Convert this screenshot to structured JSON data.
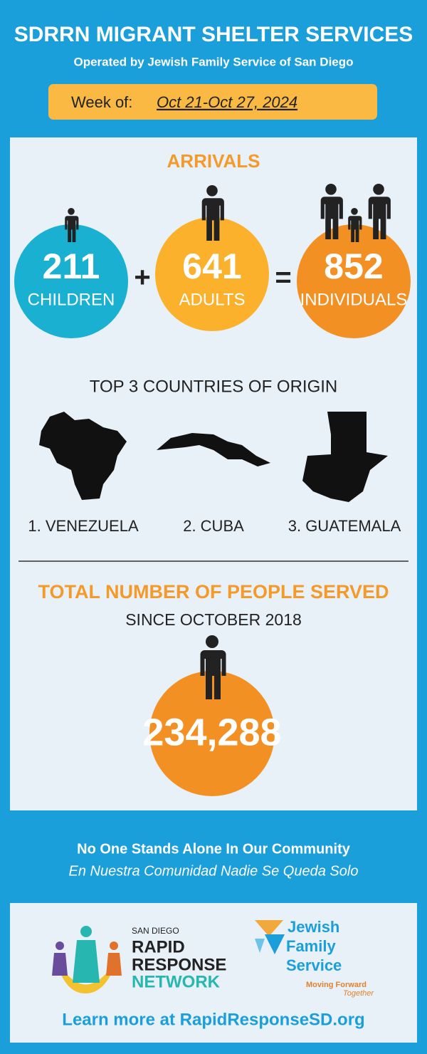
{
  "header": {
    "title": "SDRRN MIGRANT SHELTER SERVICES",
    "subtitle": "Operated by Jewish Family Service of San Diego",
    "week_label": "Week of:",
    "week_dates": "Oct 21-Oct 27, 2024"
  },
  "arrivals": {
    "heading": "ARRIVALS",
    "children": {
      "number": "211",
      "label": "CHILDREN"
    },
    "plus": "+",
    "adults": {
      "number": "641",
      "label": "ADULTS"
    },
    "equals": "=",
    "total": {
      "number": "852",
      "label": "INDIVIDUALS"
    }
  },
  "countries": {
    "heading": "TOP 3 COUNTRIES OF ORIGIN",
    "items": [
      "1. VENEZUELA",
      "2. CUBA",
      "3. GUATEMALA"
    ]
  },
  "served": {
    "heading": "TOTAL NUMBER OF PEOPLE SERVED",
    "subheading": "SINCE OCTOBER 2018",
    "number": "234,288"
  },
  "tagline": {
    "english": "No One Stands Alone In Our Community",
    "spanish": "En Nuestra Comunidad Nadie Se Queda Solo"
  },
  "footer": {
    "rrn": [
      "SAN DIEGO",
      "RAPID",
      "RESPONSE",
      "NETWORK"
    ],
    "jfs": [
      "Jewish",
      "Family",
      "Service"
    ],
    "jfs_motto": [
      "Moving Forward",
      "Together"
    ],
    "link": "Learn more at RapidResponseSD.org"
  }
}
